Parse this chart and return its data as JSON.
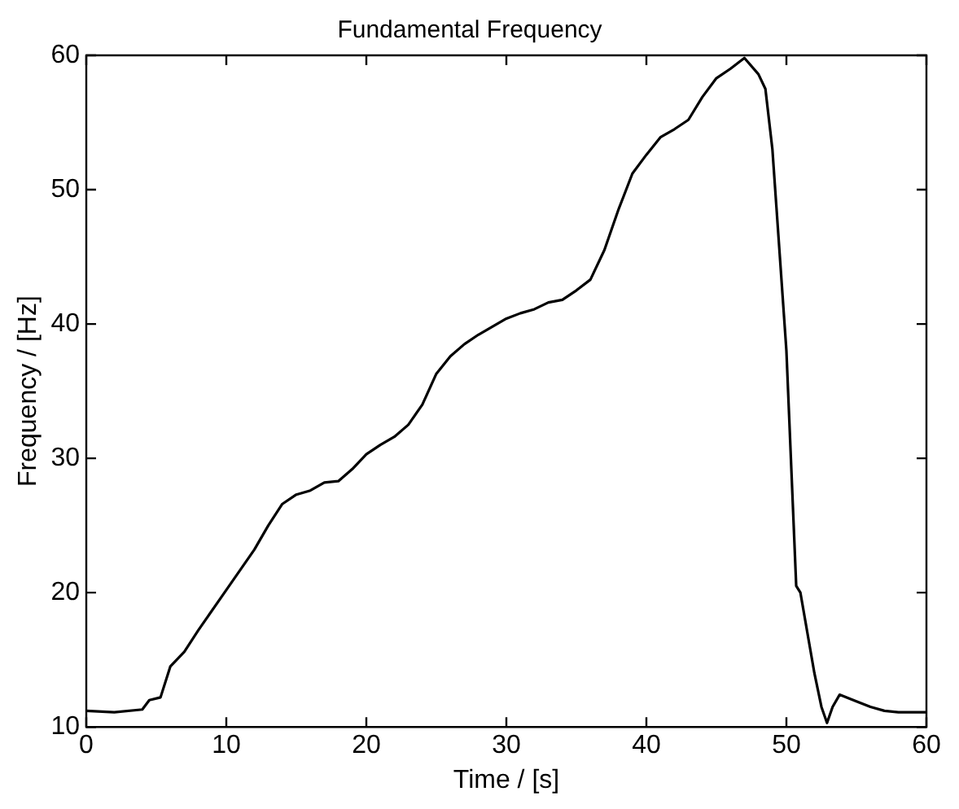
{
  "chart_data": {
    "type": "line",
    "title": "Fundamental Frequency",
    "xlabel": "Time / [s]",
    "ylabel": "Frequency / [Hz]",
    "xlim": [
      0,
      60
    ],
    "ylim": [
      10,
      60
    ],
    "xticks": [
      0,
      10,
      20,
      30,
      40,
      50,
      60
    ],
    "yticks": [
      10,
      20,
      30,
      40,
      50,
      60
    ],
    "grid": false,
    "legend": false,
    "marker": "none",
    "line_style": "solid",
    "series": [
      {
        "color": "#000000",
        "x": [
          0,
          2,
          4,
          4.5,
          5.3,
          6,
          7,
          8,
          10,
          12,
          13,
          14,
          15,
          16,
          17,
          18,
          19,
          20,
          21,
          22,
          23,
          24,
          25,
          26,
          27,
          28,
          29,
          30,
          31,
          32,
          33,
          34,
          35,
          36,
          37,
          38,
          39,
          40,
          41,
          42,
          43,
          44,
          45,
          46,
          47,
          48,
          48.5,
          49,
          50,
          50.7,
          51,
          51.5,
          52,
          52.5,
          52.9,
          53.3,
          53.8,
          55,
          56,
          57,
          58,
          60
        ],
        "values": [
          11.2,
          11.1,
          11.3,
          12.0,
          12.2,
          14.5,
          15.6,
          17.2,
          20.2,
          23.2,
          25.0,
          26.6,
          27.3,
          27.6,
          28.2,
          28.3,
          29.2,
          30.3,
          31.0,
          31.6,
          32.5,
          34.0,
          36.3,
          37.6,
          38.5,
          39.2,
          39.8,
          40.4,
          40.8,
          41.1,
          41.6,
          41.8,
          42.5,
          43.3,
          45.5,
          48.5,
          51.2,
          52.6,
          53.9,
          54.5,
          55.2,
          56.9,
          58.3,
          59.0,
          59.8,
          58.6,
          57.5,
          53,
          38,
          20.5,
          20,
          17,
          14,
          11.5,
          10.3,
          11.5,
          12.4,
          11.9,
          11.5,
          11.2,
          11.1,
          11.1
        ]
      }
    ]
  }
}
